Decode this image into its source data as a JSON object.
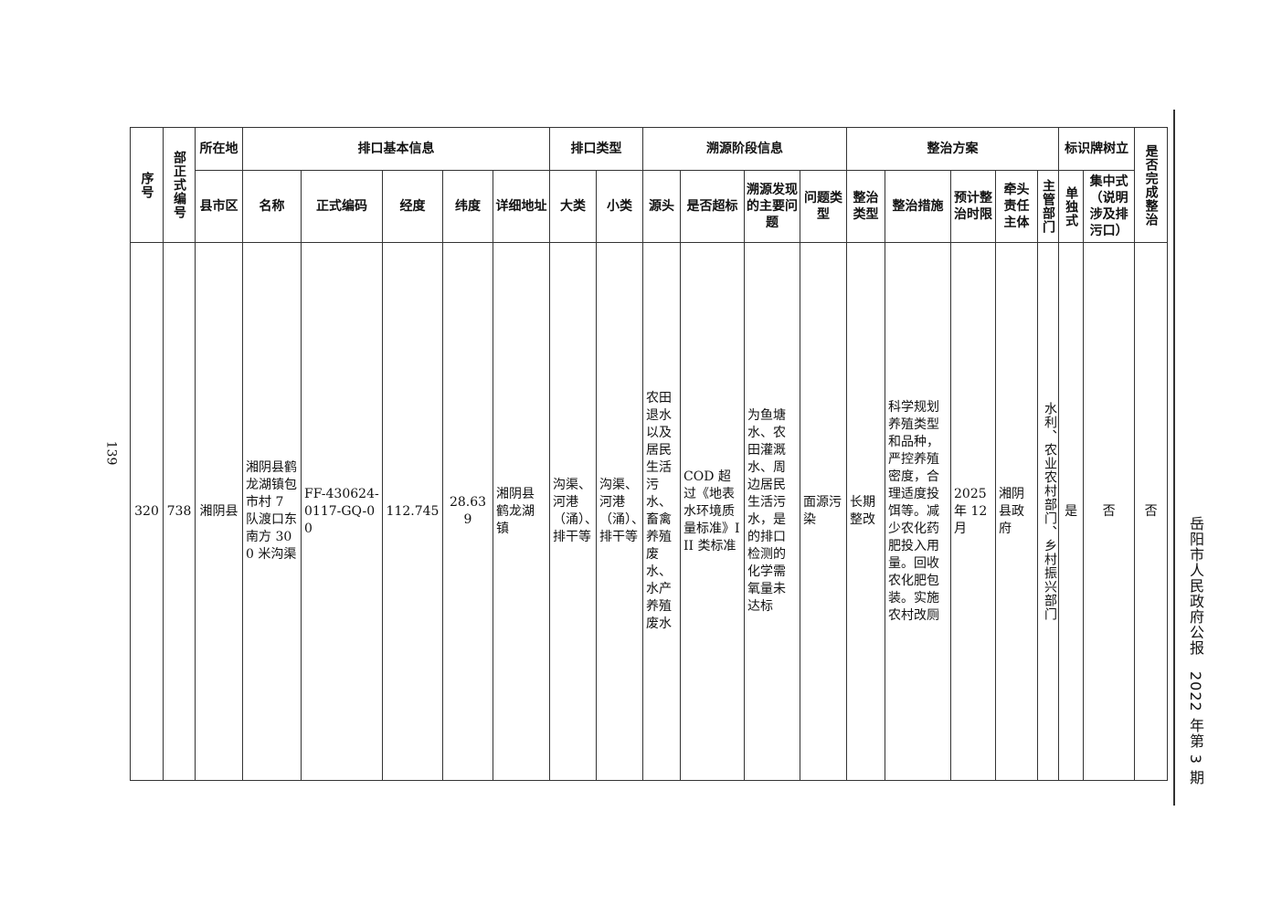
{
  "page_number": "139",
  "running_head": "岳阳市人民政府公报　2022 年第 3 期",
  "table": {
    "headers": {
      "seq": "序号",
      "formal_no": "部正式编号",
      "location": "所在地",
      "county": "县市区",
      "basic_info": "排口基本信息",
      "name": "名称",
      "formal_code": "正式编码",
      "longitude": "经度",
      "latitude": "纬度",
      "address": "详细地址",
      "outlet_type": "排口类型",
      "major_class": "大类",
      "minor_class": "小类",
      "trace_info": "溯源阶段信息",
      "source": "源头",
      "exceeds": "是否超标",
      "main_problem": "溯源发现的主要问题",
      "problem_type": "问题类型",
      "rectification_plan": "整治方案",
      "rect_type": "整治类型",
      "measures": "整治措施",
      "deadline": "预计整治时限",
      "lead_entity": "牵头责任主体",
      "dept": "主管部门",
      "signboard": "标识牌树立",
      "standalone": "单独式",
      "centralized": "集中式（说明涉及排污口）",
      "completed": "是否完成整治"
    },
    "rows": [
      {
        "seq": "320",
        "formal_no": "738",
        "county": "湘阴县",
        "name": "湘阴县鹤龙湖镇包市村 7 队渡口东南方 300 米沟渠",
        "formal_code": "FF-430624-0117-GQ-00",
        "longitude": "112.745",
        "latitude": "28.639",
        "address": "湘阴县鹤龙湖镇",
        "major_class": "沟渠、河港（涌）、排干等",
        "minor_class": "沟渠、河港（涌）、排干等",
        "source": "农田退水以及居民生活污水、畜禽养殖废水、水产养殖废水",
        "exceeds": "COD 超过《地表水环境质量标准》III 类标准",
        "main_problem": "为鱼塘水、农田灌溉水、周边居民生活污水，是的排口检测的化学需氧量未达标",
        "problem_type": "面源污染",
        "rect_type": "长期整改",
        "measures": "科学规划养殖类型和品种，严控养殖密度，合理适度投饵等。减少农化药肥投入用量。回收农化肥包装。实施农村改厕",
        "deadline": "2025 年 12 月",
        "lead_entity": "湘阴县政府",
        "dept": "水利、农业农村部门、乡村振兴部门",
        "standalone": "是",
        "centralized": "否",
        "completed": "否"
      }
    ]
  }
}
